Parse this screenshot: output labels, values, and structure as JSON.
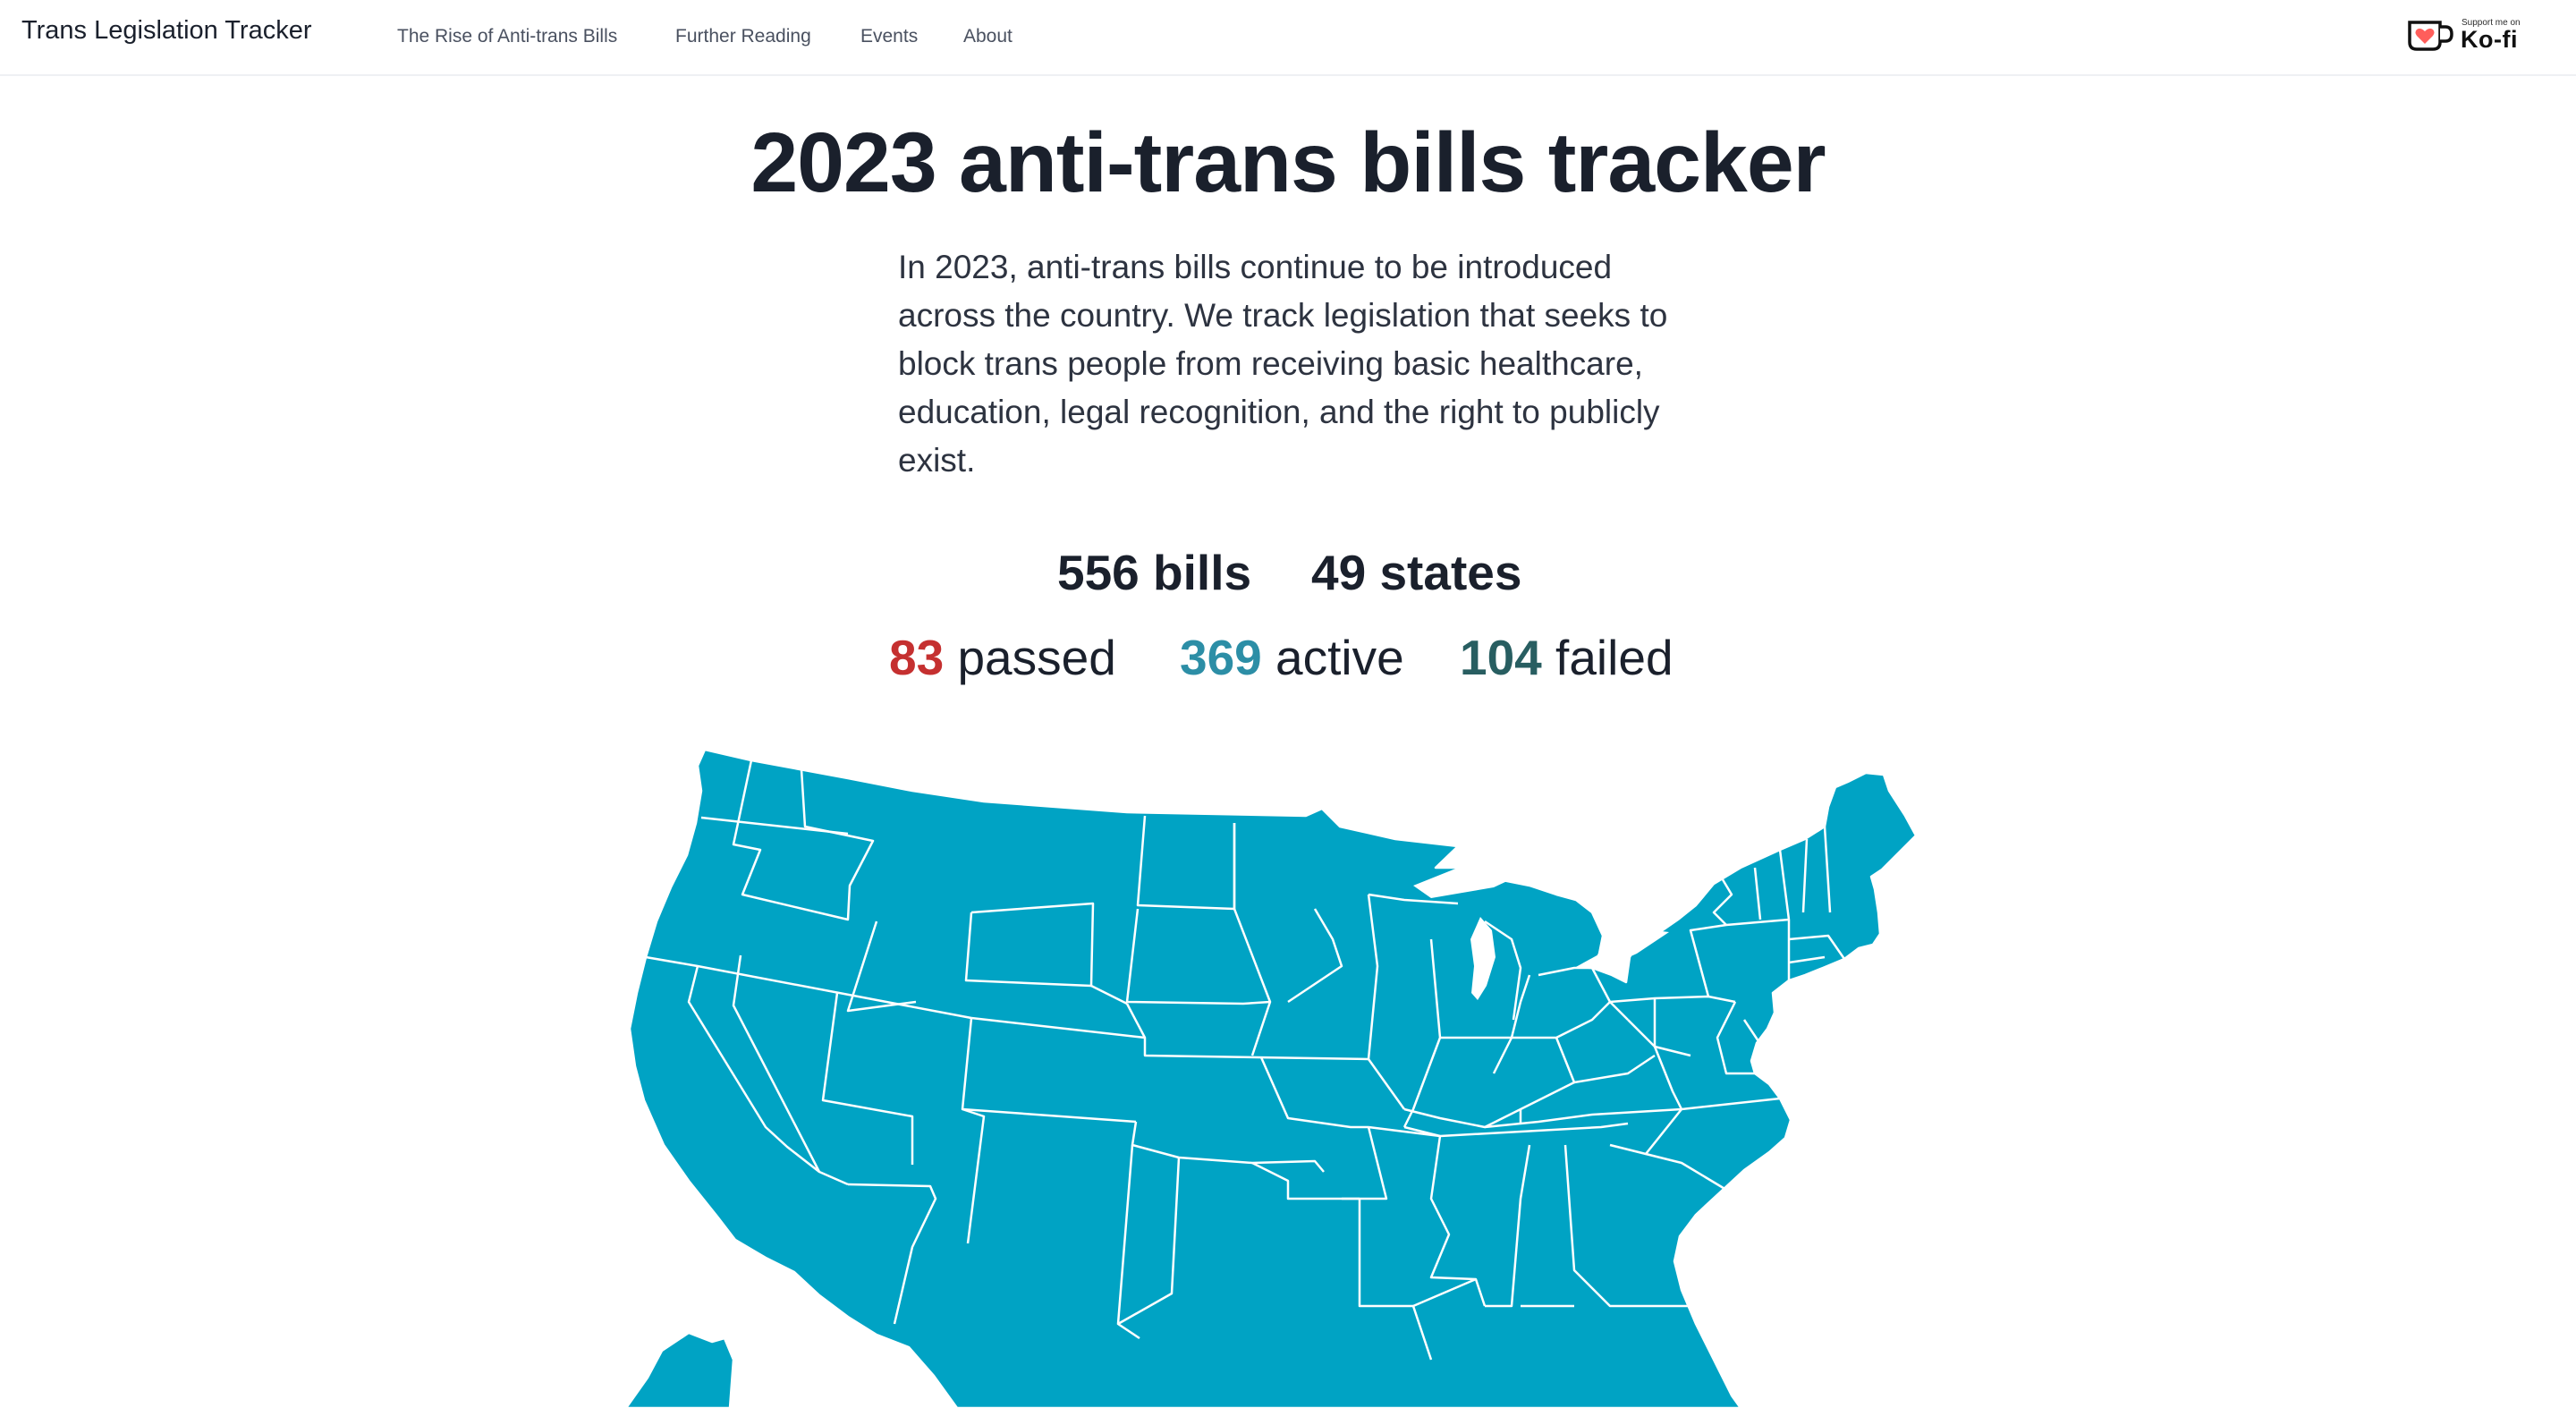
{
  "navbar": {
    "brand": "Trans Legislation Tracker",
    "links": [
      {
        "label": "The Rise of Anti-trans Bills"
      },
      {
        "label": "Further Reading"
      },
      {
        "label": "Events"
      },
      {
        "label": "About"
      }
    ],
    "kofi": {
      "small_label": "Support me on",
      "label": "Ko-fi",
      "icon": "kofi-cup-heart-icon"
    }
  },
  "hero": {
    "title": "2023 anti-trans bills tracker",
    "intro": "In 2023, anti-trans bills continue to be introduced across the country. We track legislation that seeks to block trans people from receiving basic healthcare, education, legal recognition, and the right to publicly exist."
  },
  "stats": {
    "bills": {
      "value": "556",
      "label": "bills"
    },
    "states": {
      "value": "49",
      "label": "states"
    },
    "passed": {
      "value": "83",
      "label": "passed"
    },
    "active": {
      "value": "369",
      "label": "active"
    },
    "failed": {
      "value": "104",
      "label": "failed"
    }
  },
  "colors": {
    "passed": "#c53030",
    "active": "#2c8ea6",
    "failed": "#285e61",
    "map_fill": "#00a3c4",
    "map_border": "#ffffff"
  }
}
